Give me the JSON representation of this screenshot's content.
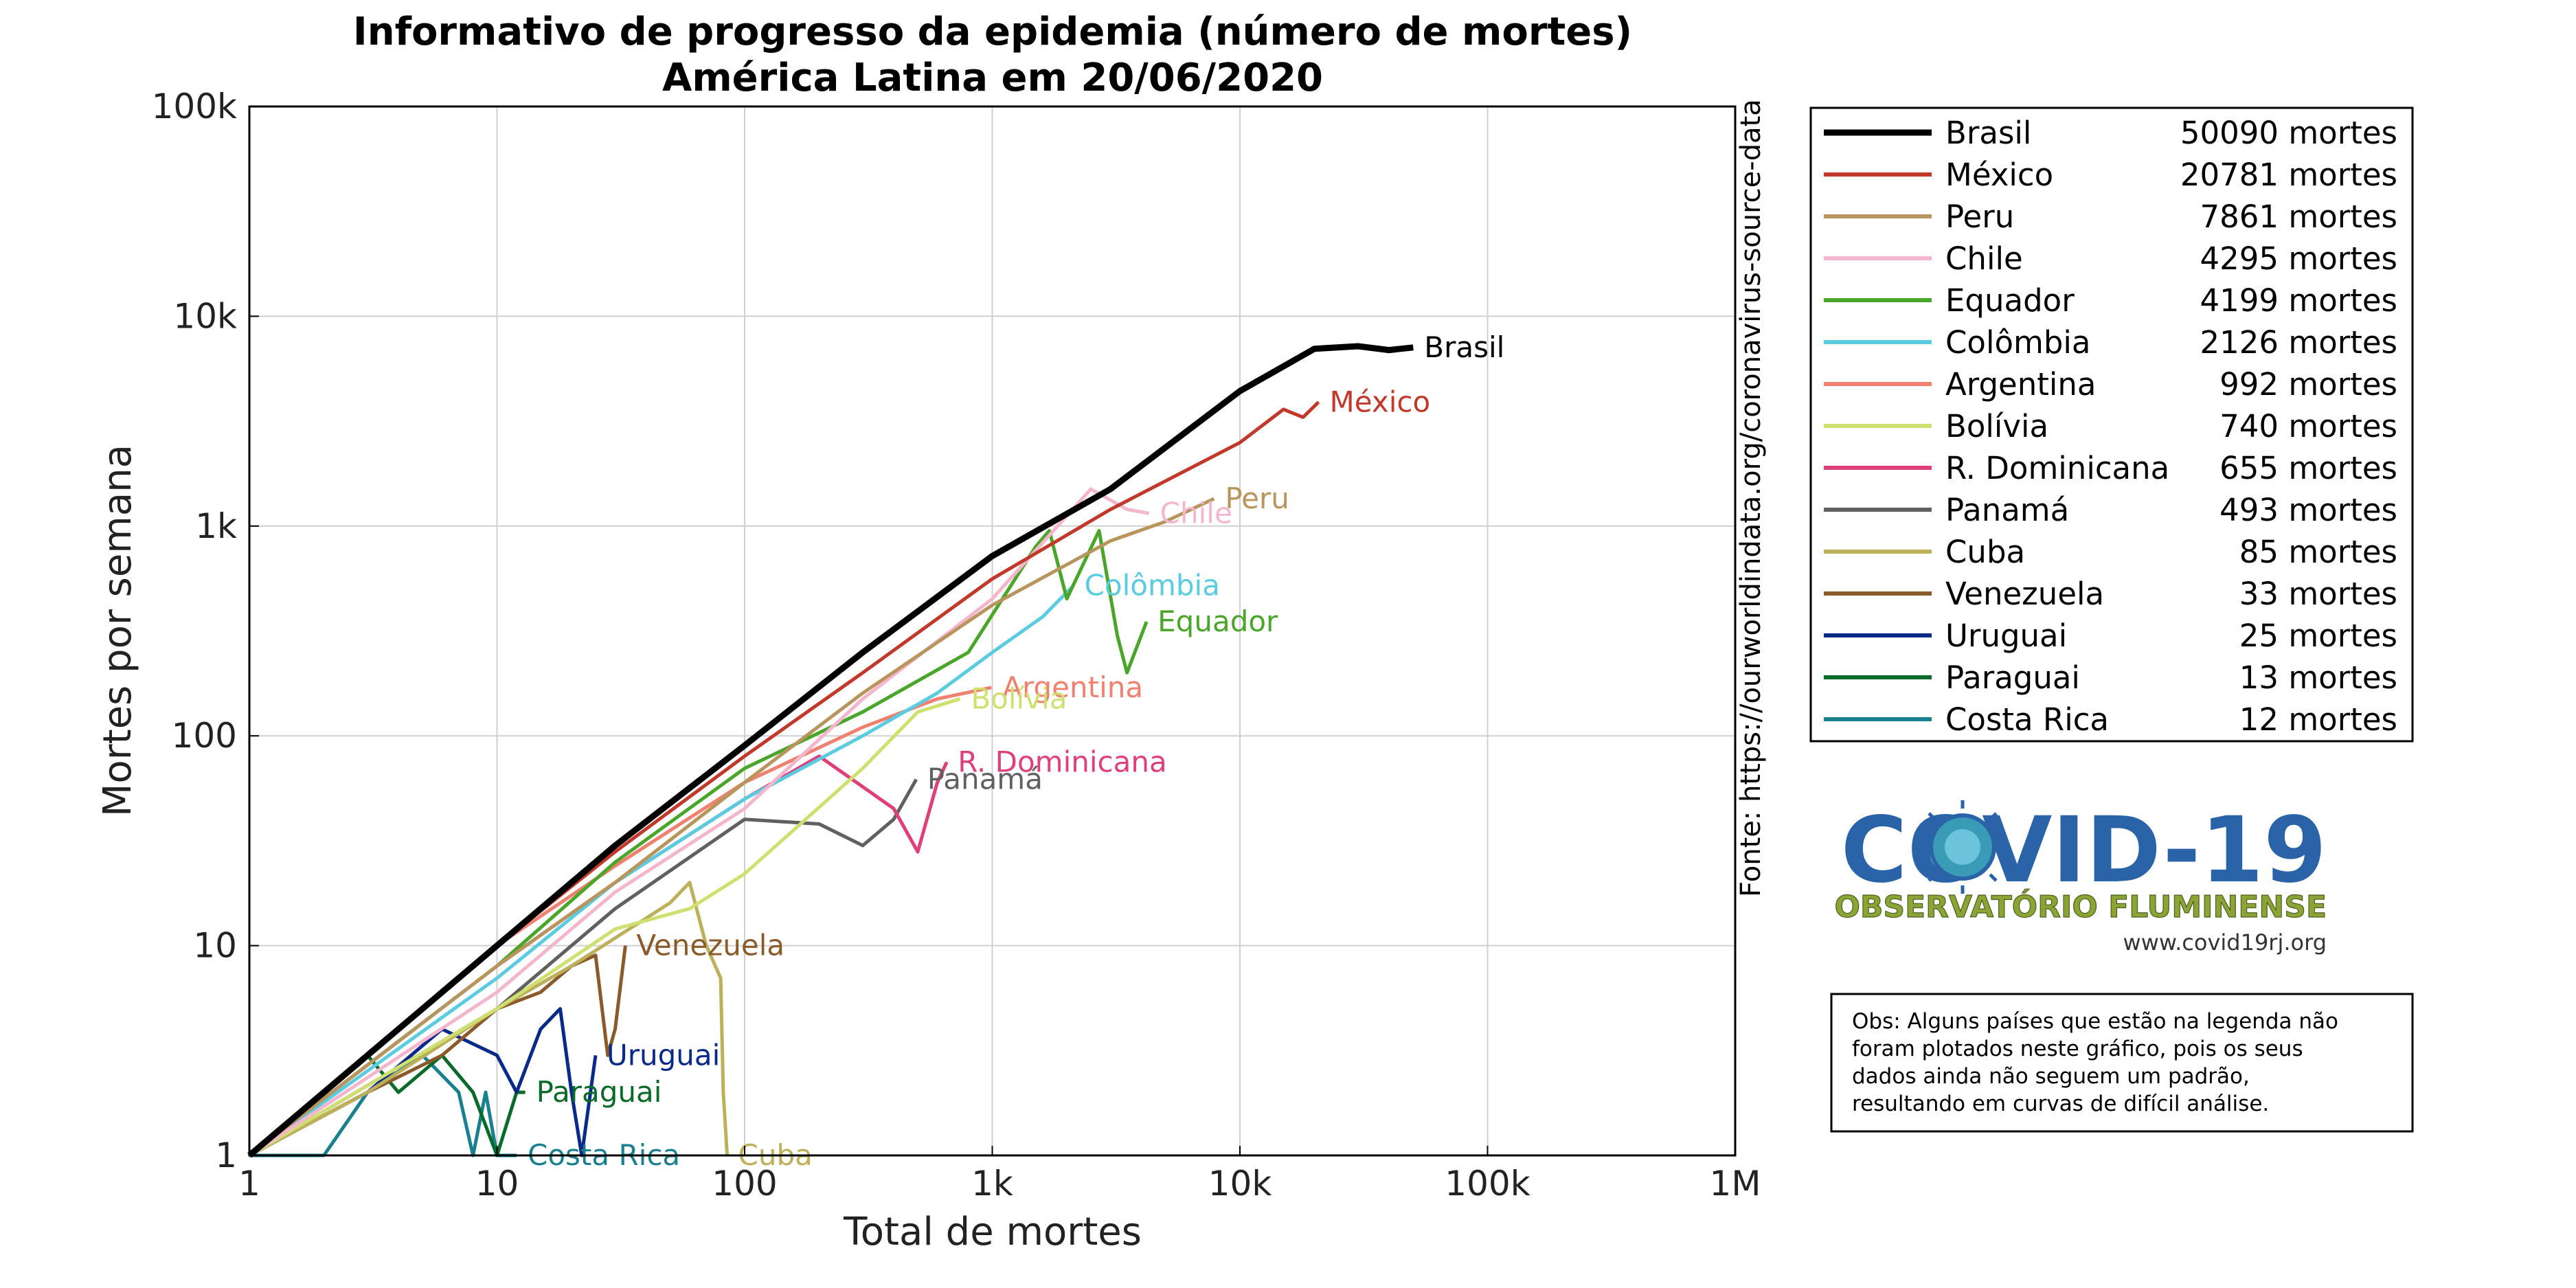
{
  "title": {
    "line1": "Informativo de progresso da epidemia (número de mortes)",
    "line2": "América Latina em 20/06/2020"
  },
  "source_note": "Fonte: https://ourworldindata.org/coronavirus-source-data",
  "logo": {
    "main": "COVID-19",
    "subtitle": "OBSERVATÓRIO FLUMINENSE",
    "url": "www.covid19rj.org"
  },
  "note": {
    "lines": [
      "Obs: Alguns países que estão na legenda não",
      "foram plotados neste gráfico, pois os seus",
      "dados ainda não seguem um padrão,",
      "resultando em curvas de difícil análise."
    ]
  },
  "chart_data": {
    "type": "line",
    "xlabel": "Total de mortes",
    "ylabel": "Mortes por semana",
    "xscale": "log",
    "yscale": "log",
    "xlim": [
      1,
      1000000
    ],
    "ylim": [
      1,
      100000
    ],
    "x_ticks": [
      {
        "value": 1,
        "label": "1"
      },
      {
        "value": 10,
        "label": "10"
      },
      {
        "value": 100,
        "label": "100"
      },
      {
        "value": 1000,
        "label": "1k"
      },
      {
        "value": 10000,
        "label": "10k"
      },
      {
        "value": 100000,
        "label": "100k"
      },
      {
        "value": 1000000,
        "label": "1M"
      }
    ],
    "y_ticks": [
      {
        "value": 1,
        "label": "1"
      },
      {
        "value": 10,
        "label": "10"
      },
      {
        "value": 100,
        "label": "100"
      },
      {
        "value": 1000,
        "label": "1k"
      },
      {
        "value": 10000,
        "label": "10k"
      },
      {
        "value": 100000,
        "label": "100k"
      }
    ],
    "grid": true,
    "legend_position": "right",
    "series": [
      {
        "name": "Brasil",
        "legend": "50090 mortes",
        "color": "#000000",
        "label": "Brasil",
        "points": [
          [
            1,
            1
          ],
          [
            10,
            10
          ],
          [
            30,
            30
          ],
          [
            100,
            90
          ],
          [
            300,
            250
          ],
          [
            1000,
            720
          ],
          [
            3000,
            1500
          ],
          [
            10000,
            4400
          ],
          [
            20000,
            7000
          ],
          [
            30000,
            7200
          ],
          [
            40000,
            6900
          ],
          [
            50090,
            7100
          ]
        ]
      },
      {
        "name": "México",
        "legend": "20781 mortes",
        "color": "#c0392b",
        "label": "México",
        "points": [
          [
            1,
            1
          ],
          [
            10,
            10
          ],
          [
            30,
            28
          ],
          [
            100,
            80
          ],
          [
            300,
            200
          ],
          [
            1000,
            560
          ],
          [
            3000,
            1200
          ],
          [
            10000,
            2500
          ],
          [
            15000,
            3600
          ],
          [
            18000,
            3300
          ],
          [
            20781,
            3900
          ]
        ]
      },
      {
        "name": "Peru",
        "legend": "7861 mortes",
        "color": "#b8955c",
        "label": "Peru",
        "points": [
          [
            1,
            1
          ],
          [
            10,
            8
          ],
          [
            30,
            20
          ],
          [
            100,
            60
          ],
          [
            300,
            160
          ],
          [
            1000,
            420
          ],
          [
            3000,
            850
          ],
          [
            5000,
            1050
          ],
          [
            7861,
            1350
          ]
        ]
      },
      {
        "name": "Chile",
        "legend": "4295 mortes",
        "color": "#f4b6cc",
        "label": "Chile",
        "points": [
          [
            1,
            1
          ],
          [
            10,
            6
          ],
          [
            30,
            18
          ],
          [
            100,
            45
          ],
          [
            300,
            150
          ],
          [
            1000,
            450
          ],
          [
            2500,
            1500
          ],
          [
            3500,
            1200
          ],
          [
            4295,
            1150
          ]
        ]
      },
      {
        "name": "Equador",
        "legend": "4199 mortes",
        "color": "#4aa62a",
        "label": "Equador",
        "points": [
          [
            1,
            1
          ],
          [
            10,
            8
          ],
          [
            30,
            25
          ],
          [
            100,
            70
          ],
          [
            300,
            130
          ],
          [
            800,
            250
          ],
          [
            1500,
            800
          ],
          [
            1700,
            950
          ],
          [
            2000,
            450
          ],
          [
            2700,
            950
          ],
          [
            3200,
            300
          ],
          [
            3500,
            200
          ],
          [
            4199,
            350
          ]
        ]
      },
      {
        "name": "Colômbia",
        "legend": "2126 mortes",
        "color": "#5bcbe0",
        "label": "Colômbia",
        "points": [
          [
            1,
            1
          ],
          [
            10,
            7
          ],
          [
            30,
            20
          ],
          [
            100,
            50
          ],
          [
            300,
            100
          ],
          [
            600,
            160
          ],
          [
            1000,
            250
          ],
          [
            1600,
            370
          ],
          [
            2126,
            520
          ]
        ]
      },
      {
        "name": "Argentina",
        "legend": "992 mortes",
        "color": "#f08070",
        "label": "Argentina",
        "points": [
          [
            1,
            1
          ],
          [
            5,
            5
          ],
          [
            10,
            10
          ],
          [
            30,
            24
          ],
          [
            100,
            60
          ],
          [
            300,
            110
          ],
          [
            600,
            150
          ],
          [
            992,
            170
          ]
        ]
      },
      {
        "name": "Bolívia",
        "legend": "740 mortes",
        "color": "#cfe070",
        "label": "Bolívia",
        "points": [
          [
            1,
            1
          ],
          [
            10,
            5
          ],
          [
            30,
            12
          ],
          [
            60,
            15
          ],
          [
            100,
            22
          ],
          [
            300,
            70
          ],
          [
            500,
            130
          ],
          [
            740,
            150
          ]
        ]
      },
      {
        "name": "R. Dominicana",
        "legend": "655 mortes",
        "color": "#e0407a",
        "label": "R. Dominicana",
        "points": [
          [
            1,
            1
          ],
          [
            10,
            8
          ],
          [
            30,
            20
          ],
          [
            100,
            50
          ],
          [
            200,
            80
          ],
          [
            400,
            45
          ],
          [
            500,
            28
          ],
          [
            600,
            60
          ],
          [
            655,
            75
          ]
        ]
      },
      {
        "name": "Panamá",
        "legend": "493 mortes",
        "color": "#606060",
        "label": "Panamá",
        "points": [
          [
            1,
            1
          ],
          [
            10,
            5
          ],
          [
            30,
            15
          ],
          [
            100,
            40
          ],
          [
            200,
            38
          ],
          [
            300,
            30
          ],
          [
            400,
            40
          ],
          [
            493,
            62
          ]
        ]
      },
      {
        "name": "Cuba",
        "legend": "85 mortes",
        "color": "#bdb05a",
        "label": "Cuba",
        "points": [
          [
            1,
            1
          ],
          [
            3,
            2
          ],
          [
            10,
            5
          ],
          [
            20,
            8
          ],
          [
            50,
            16
          ],
          [
            60,
            20
          ],
          [
            70,
            10
          ],
          [
            80,
            7
          ],
          [
            82,
            2
          ],
          [
            85,
            1
          ]
        ]
      },
      {
        "name": "Venezuela",
        "legend": "33 mortes",
        "color": "#8b5a2b",
        "label": "Venezuela",
        "points": [
          [
            1,
            1
          ],
          [
            3,
            2
          ],
          [
            6,
            3
          ],
          [
            10,
            5
          ],
          [
            15,
            6
          ],
          [
            20,
            8
          ],
          [
            25,
            9
          ],
          [
            28,
            3
          ],
          [
            30,
            4
          ],
          [
            33,
            10
          ]
        ]
      },
      {
        "name": "Uruguai",
        "legend": "25 mortes",
        "color": "#0a2a8a",
        "label": "Uruguai",
        "points": [
          [
            1,
            1
          ],
          [
            3,
            2
          ],
          [
            6,
            4
          ],
          [
            10,
            3
          ],
          [
            12,
            2
          ],
          [
            15,
            4
          ],
          [
            18,
            5
          ],
          [
            20,
            2
          ],
          [
            22,
            1
          ],
          [
            25,
            3
          ]
        ]
      },
      {
        "name": "Paraguai",
        "legend": "13 mortes",
        "color": "#0a6a2a",
        "label": "Paraguai",
        "points": [
          [
            1,
            1
          ],
          [
            2,
            2
          ],
          [
            3,
            3
          ],
          [
            4,
            2
          ],
          [
            6,
            3
          ],
          [
            8,
            2
          ],
          [
            10,
            1
          ],
          [
            12,
            2
          ],
          [
            13,
            2
          ]
        ]
      },
      {
        "name": "Costa Rica",
        "legend": "12 mortes",
        "color": "#1a8090",
        "label": "Costa Rica",
        "points": [
          [
            1,
            1
          ],
          [
            2,
            1
          ],
          [
            3,
            2
          ],
          [
            5,
            3
          ],
          [
            7,
            2
          ],
          [
            8,
            1
          ],
          [
            9,
            2
          ],
          [
            10,
            1
          ],
          [
            12,
            1
          ]
        ]
      }
    ]
  }
}
